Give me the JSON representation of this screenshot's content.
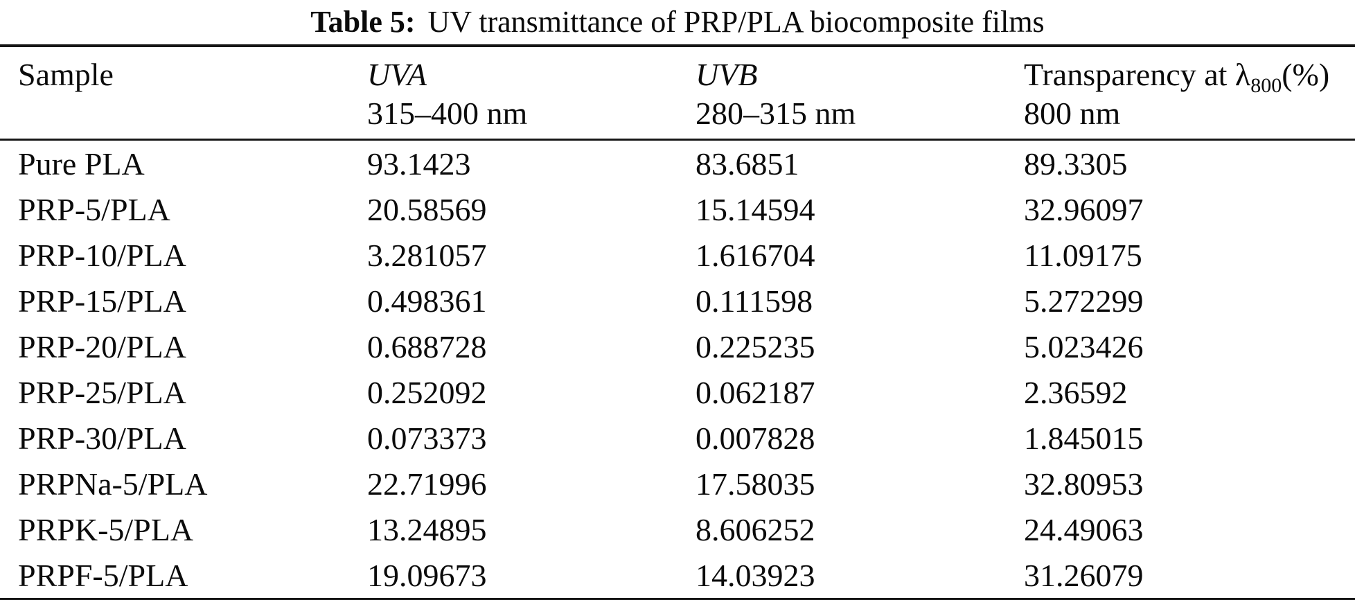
{
  "caption": {
    "label": "Table 5:",
    "text": "UV transmittance of PRP/PLA biocomposite films"
  },
  "header": {
    "col1": {
      "line1": "Sample"
    },
    "col2": {
      "line1": "UVA",
      "line2": "315–400 nm"
    },
    "col3": {
      "line1": "UVB",
      "line2": "280–315 nm"
    },
    "col4": {
      "line1_pre": "Transparency at λ",
      "line1_sub": "800",
      "line1_post": "(%)",
      "line2": "800 nm"
    }
  },
  "rows": [
    {
      "sample": "Pure PLA",
      "uva": "93.1423",
      "uvb": "83.6851",
      "t800": "89.3305"
    },
    {
      "sample": "PRP-5/PLA",
      "uva": "20.58569",
      "uvb": "15.14594",
      "t800": "32.96097"
    },
    {
      "sample": "PRP-10/PLA",
      "uva": "3.281057",
      "uvb": "1.616704",
      "t800": "11.09175"
    },
    {
      "sample": "PRP-15/PLA",
      "uva": "0.498361",
      "uvb": "0.111598",
      "t800": "5.272299"
    },
    {
      "sample": "PRP-20/PLA",
      "uva": "0.688728",
      "uvb": "0.225235",
      "t800": "5.023426"
    },
    {
      "sample": "PRP-25/PLA",
      "uva": "0.252092",
      "uvb": "0.062187",
      "t800": "2.36592"
    },
    {
      "sample": "PRP-30/PLA",
      "uva": "0.073373",
      "uvb": "0.007828",
      "t800": "1.845015"
    },
    {
      "sample": "PRPNa-5/PLA",
      "uva": "22.71996",
      "uvb": "17.58035",
      "t800": "32.80953"
    },
    {
      "sample": "PRPK-5/PLA",
      "uva": "13.24895",
      "uvb": "8.606252",
      "t800": "24.49063"
    },
    {
      "sample": "PRPF-5/PLA",
      "uva": "19.09673",
      "uvb": "14.03923",
      "t800": "31.26079"
    }
  ],
  "colors": {
    "text": "#0b0b0b",
    "rule": "#161616",
    "background": "#ffffff"
  }
}
